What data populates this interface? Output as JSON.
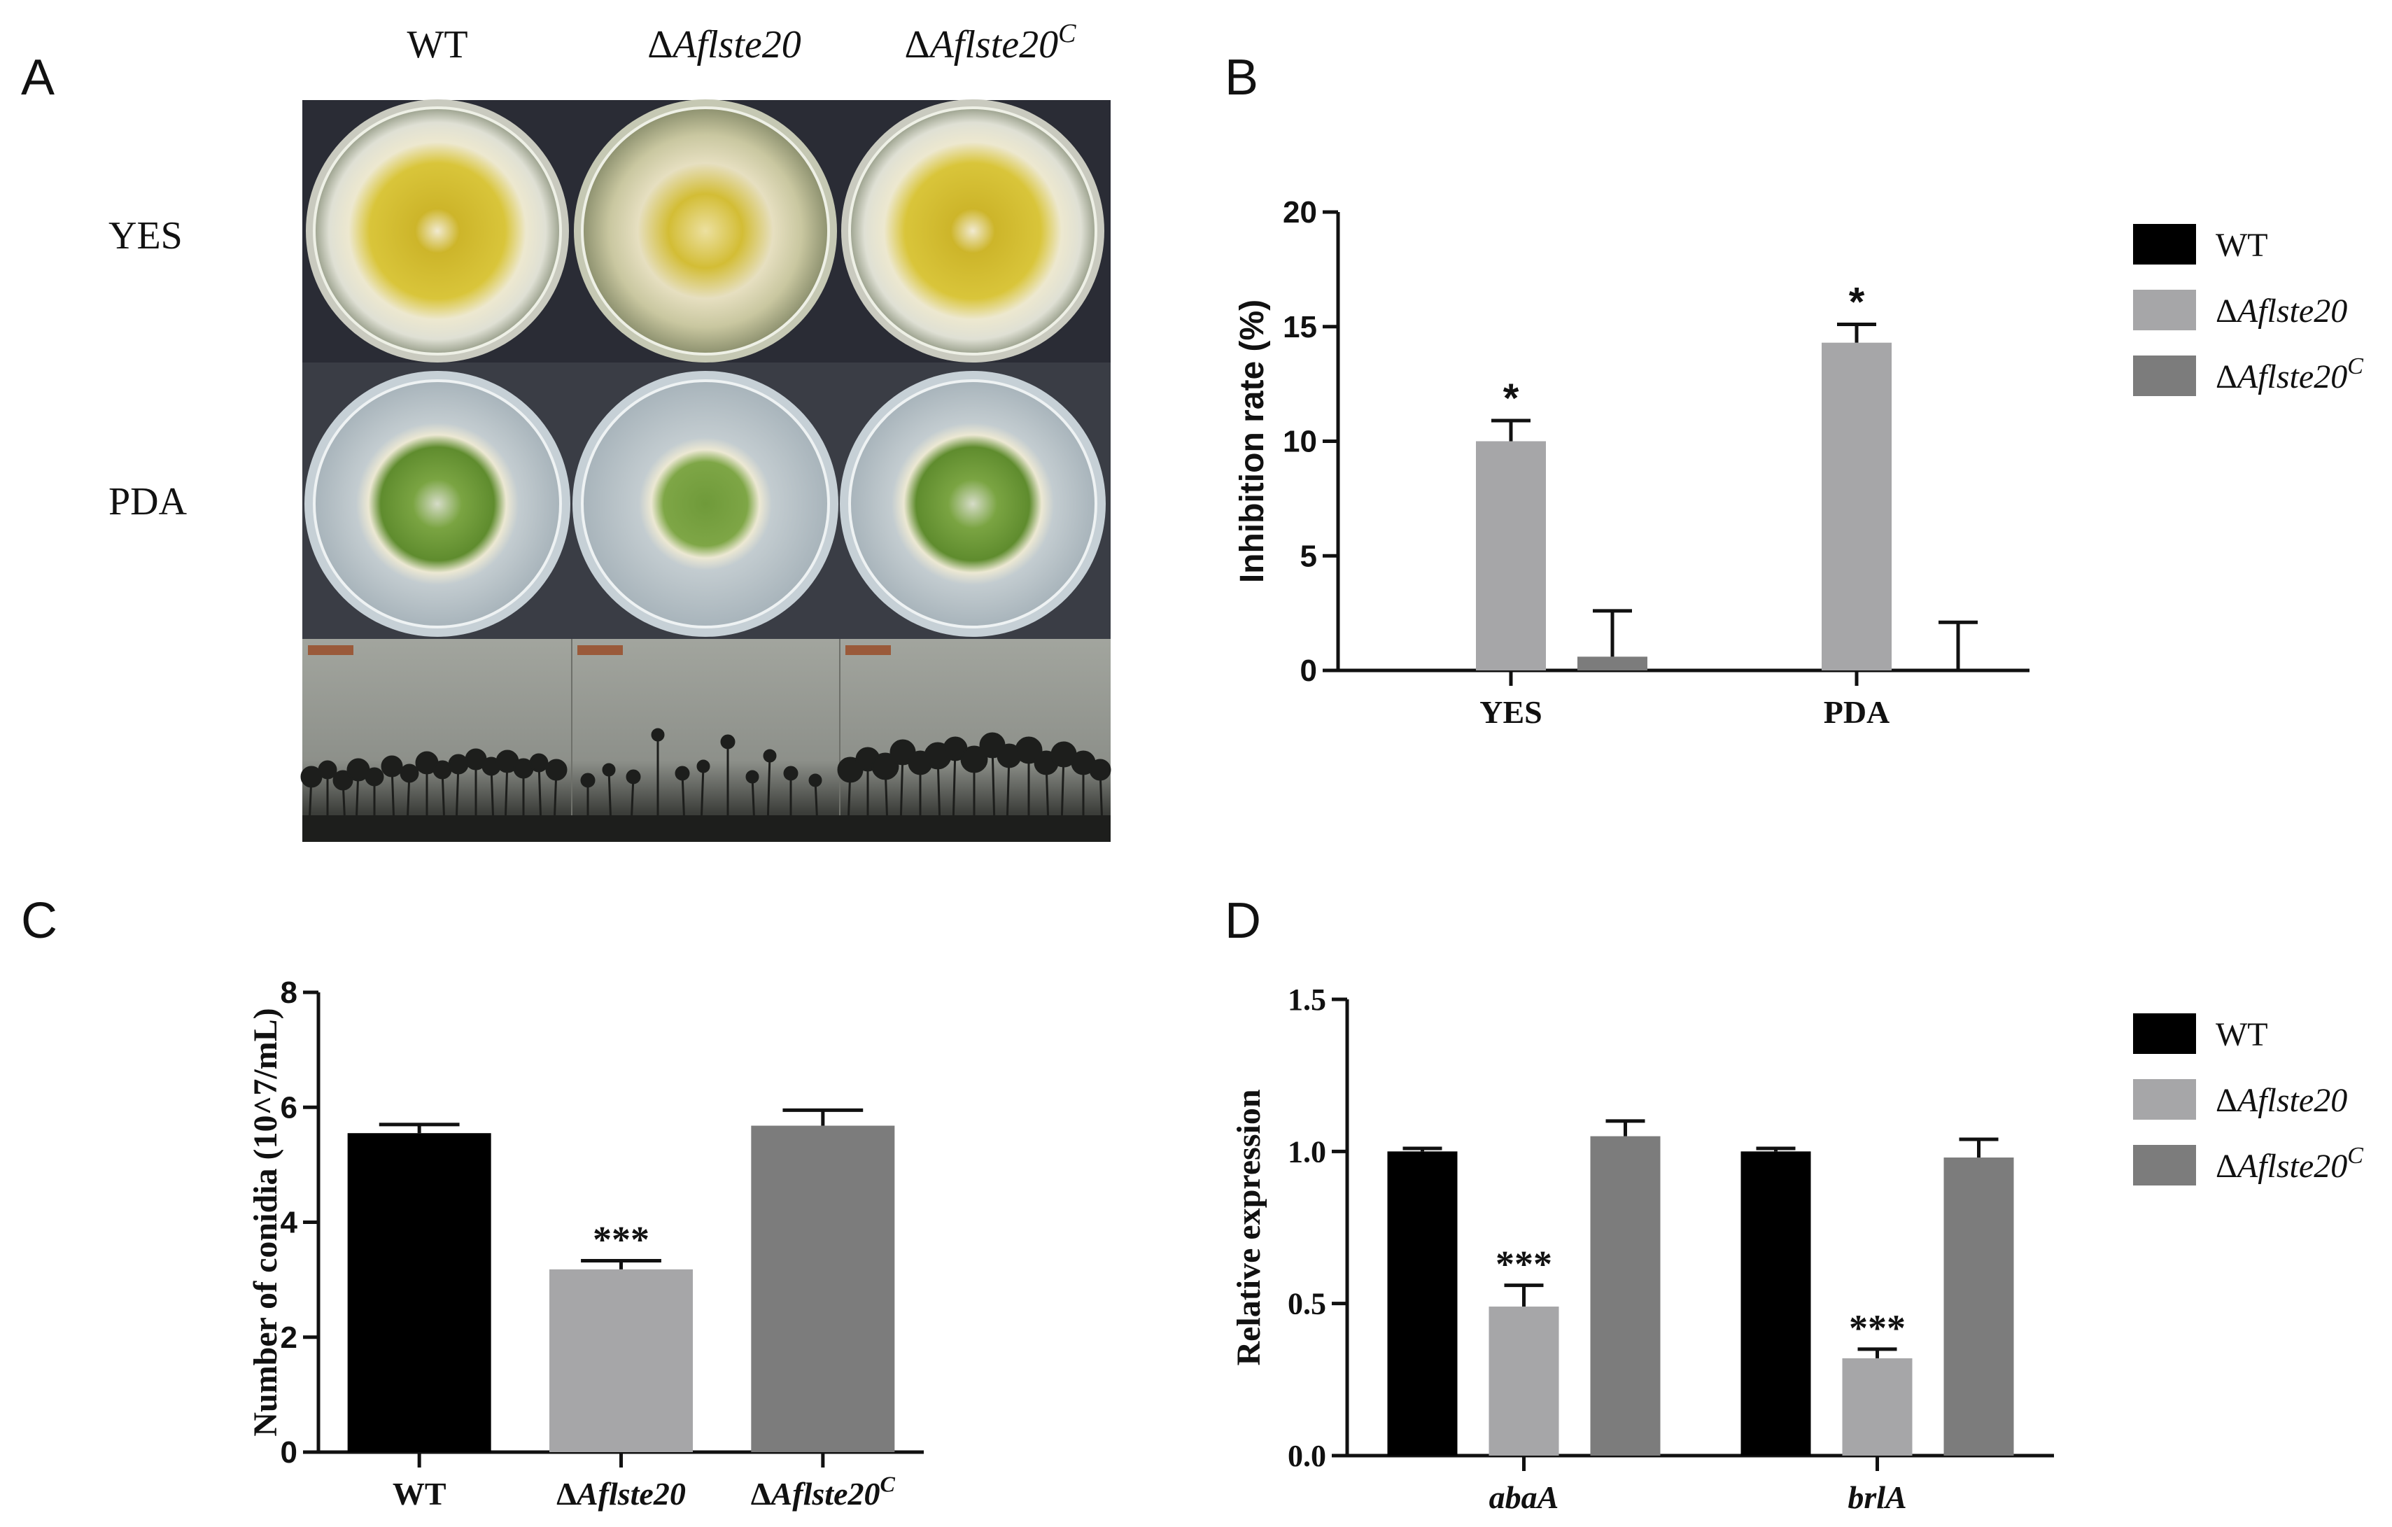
{
  "panels": {
    "a": "A",
    "b": "B",
    "c": "C",
    "d": "D"
  },
  "panel_a": {
    "columns": [
      "WT",
      "ΔAflste20",
      "ΔAflste20C"
    ],
    "rows": [
      "YES",
      "PDA"
    ],
    "colors": {
      "yes_colony": "#d6c23a",
      "pda_colony": "#7fa843",
      "agar": "#b7c3c9",
      "bg": "#2b2d36"
    }
  },
  "legend": {
    "items": [
      {
        "prefix": "",
        "italic": "",
        "plain": "WT",
        "sup": "",
        "color": "#000000"
      },
      {
        "prefix": "Δ",
        "italic": "Aflste20",
        "plain": "",
        "sup": "",
        "color": "#a6a6a8"
      },
      {
        "prefix": "Δ",
        "italic": "Aflste20",
        "plain": "",
        "sup": "C",
        "color": "#7c7c7c"
      }
    ]
  },
  "chart_data": [
    {
      "panel": "B",
      "type": "bar",
      "ylabel": "Inhibition rate (%)",
      "xlabel": "",
      "categories": [
        "YES",
        "PDA"
      ],
      "ylim": [
        0,
        20
      ],
      "yticks": [
        "0",
        "5",
        "10",
        "15",
        "20"
      ],
      "series": [
        {
          "name": "WT",
          "values": [
            0,
            0
          ],
          "errors": [
            0,
            0
          ],
          "color": "#000000"
        },
        {
          "name": "ΔAflste20",
          "values": [
            10.0,
            14.3
          ],
          "errors": [
            0.9,
            0.8
          ],
          "color": "#a6a6a8"
        },
        {
          "name": "ΔAflste20C",
          "values": [
            0.6,
            0.0
          ],
          "errors": [
            2.0,
            2.1
          ],
          "color": "#7c7c7c"
        }
      ],
      "annotations": [
        "*",
        "*"
      ]
    },
    {
      "panel": "C",
      "type": "bar",
      "ylabel": "Number of conidia (10^7/mL)",
      "xlabel": "",
      "categories": [
        "WT",
        "ΔAflste20",
        "ΔAflste20C"
      ],
      "ylim": [
        0,
        8
      ],
      "yticks": [
        "0",
        "2",
        "4",
        "6",
        "8"
      ],
      "values": [
        5.55,
        3.18,
        5.68
      ],
      "errors": [
        0.15,
        0.15,
        0.27
      ],
      "colors": [
        "#000000",
        "#a6a6a8",
        "#7c7c7c"
      ],
      "annotations": [
        "",
        "***",
        ""
      ]
    },
    {
      "panel": "D",
      "type": "bar",
      "ylabel": "Relative expression",
      "xlabel": "",
      "categories": [
        "abaA",
        "brlA"
      ],
      "ylim": [
        0,
        1.5
      ],
      "yticks": [
        "0.0",
        "0.5",
        "1.0",
        "1.5"
      ],
      "series": [
        {
          "name": "WT",
          "values": [
            1.0,
            1.0
          ],
          "errors": [
            0.01,
            0.01
          ],
          "color": "#000000"
        },
        {
          "name": "ΔAflste20",
          "values": [
            0.49,
            0.32
          ],
          "errors": [
            0.07,
            0.03
          ],
          "color": "#a6a6a8"
        },
        {
          "name": "ΔAflste20C",
          "values": [
            1.05,
            0.98
          ],
          "errors": [
            0.05,
            0.06
          ],
          "color": "#7c7c7c"
        }
      ],
      "annotations": [
        "***",
        "***"
      ]
    }
  ]
}
